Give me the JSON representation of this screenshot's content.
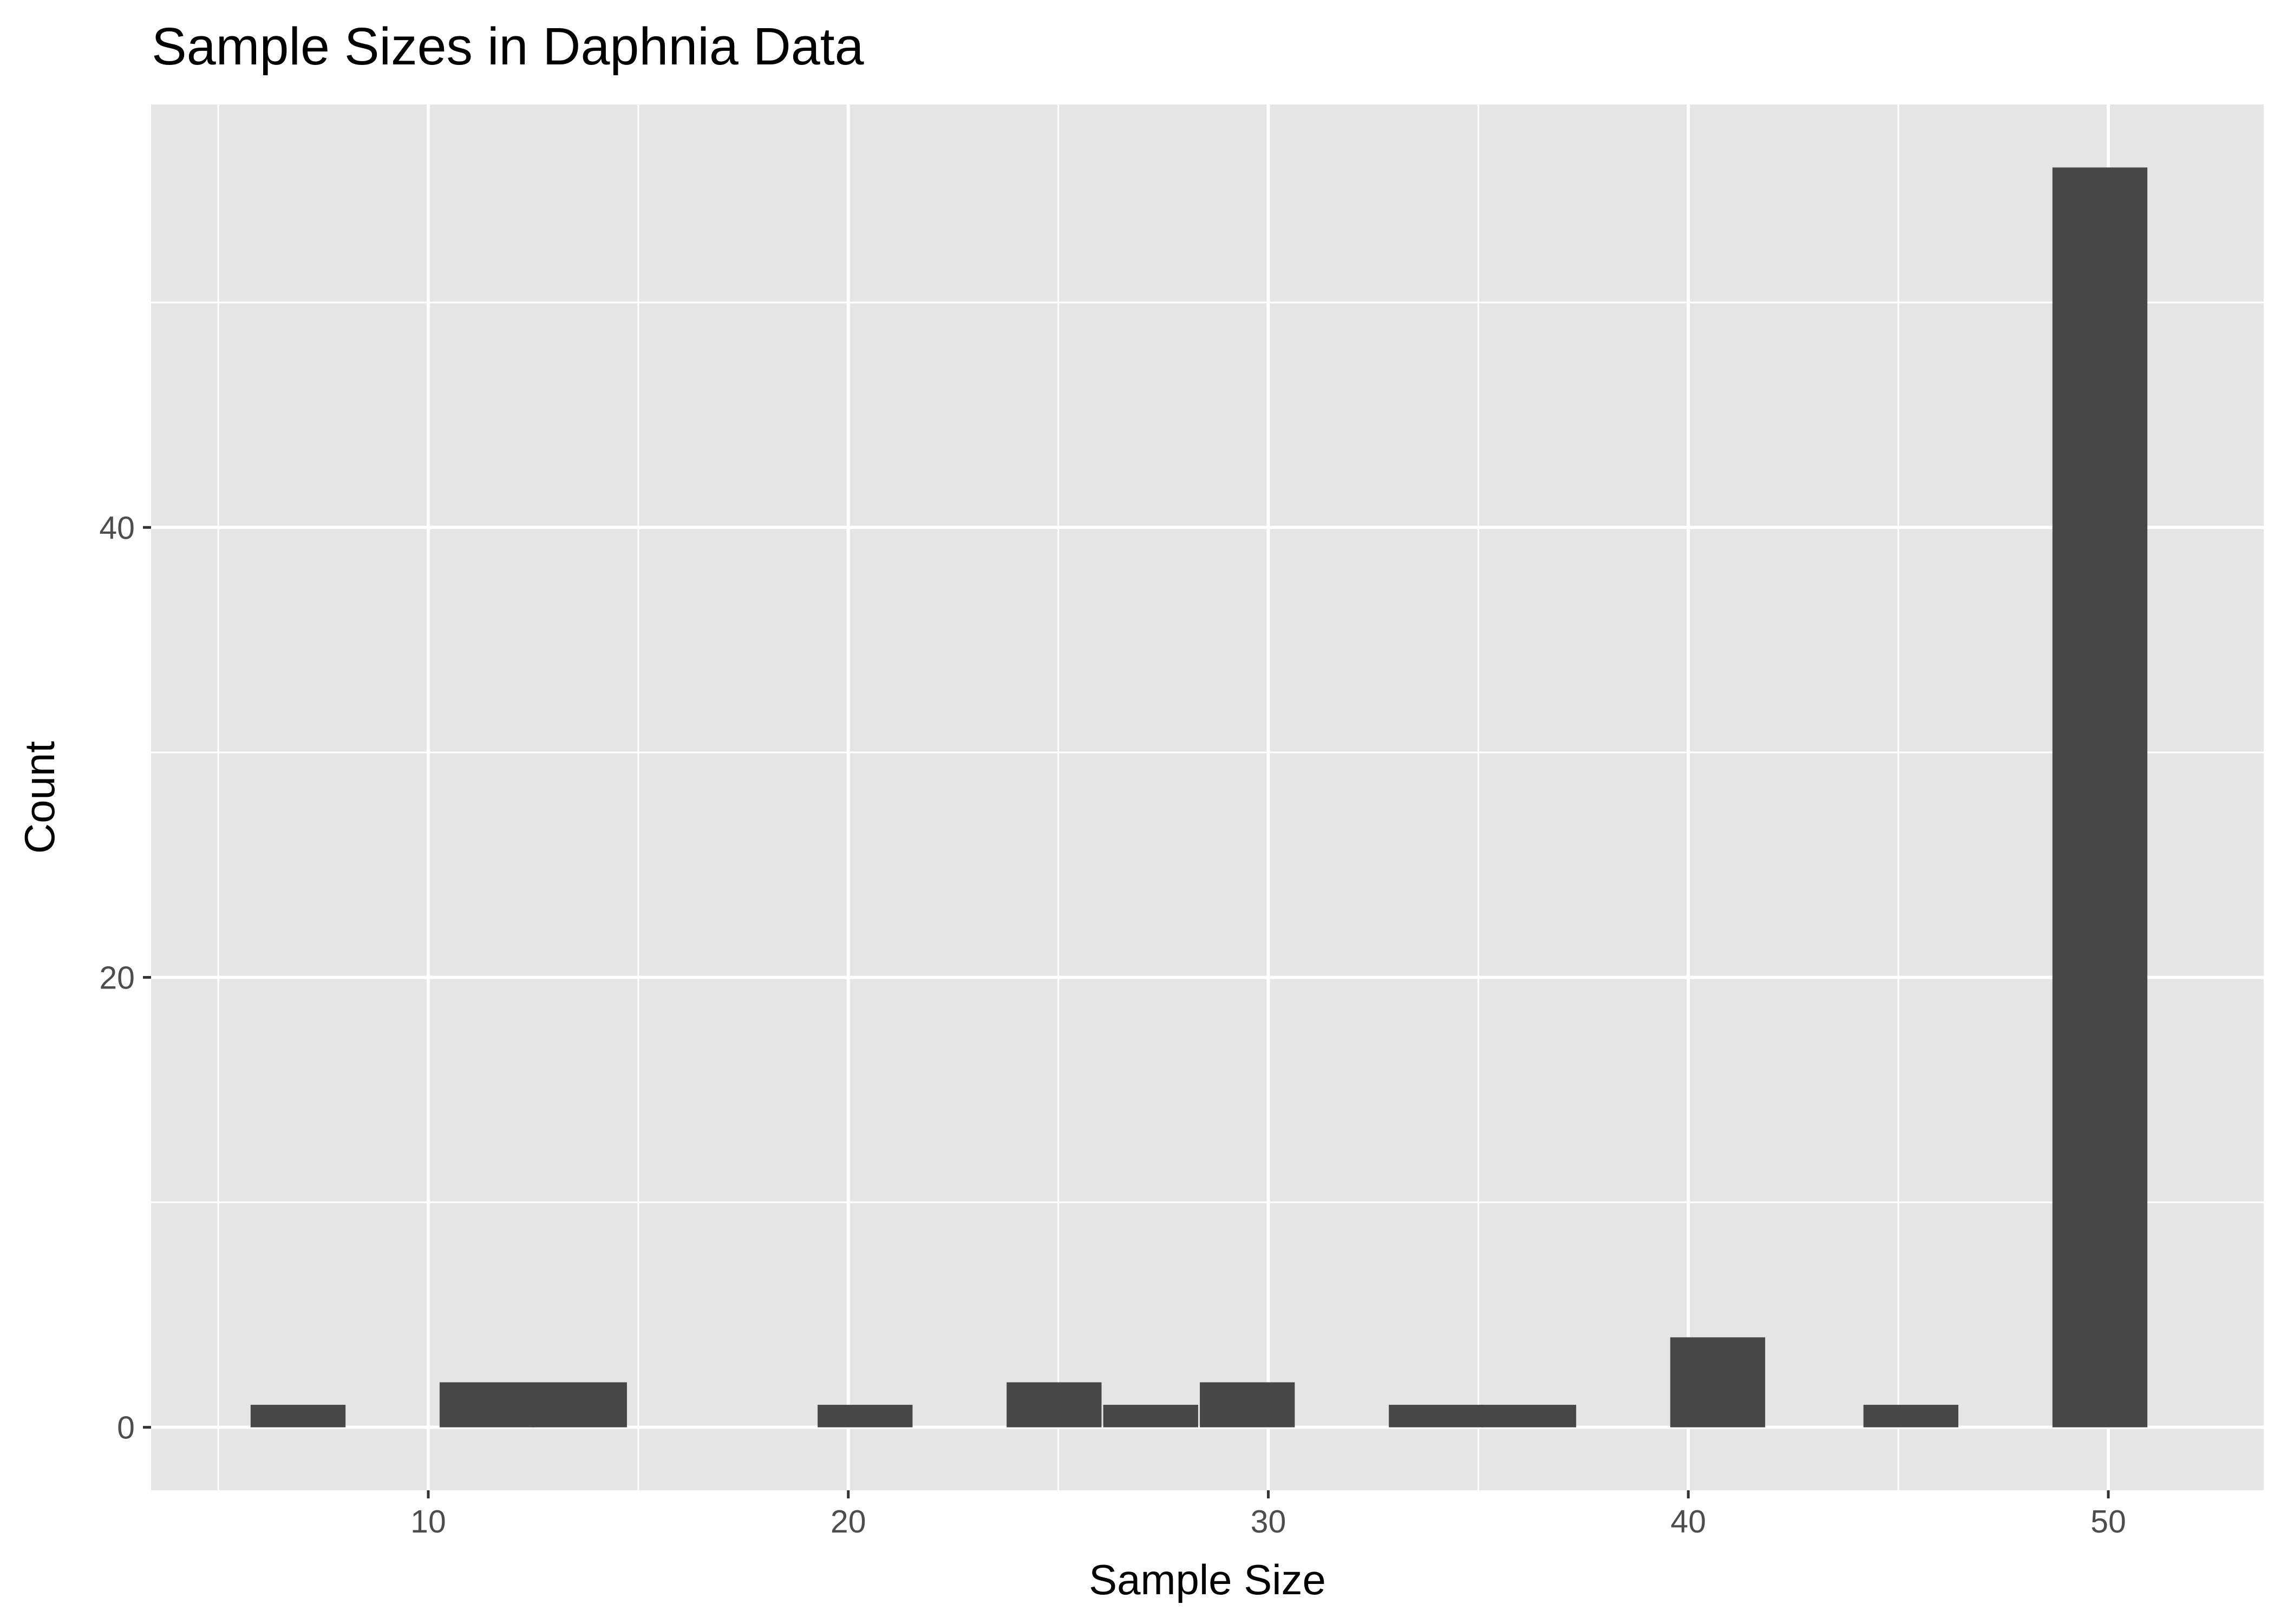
{
  "chart_data": {
    "type": "bar",
    "title": "Sample Sizes in Daphnia Data",
    "xlabel": "Sample Size",
    "ylabel": "Count",
    "xlim": [
      3.4,
      53.7
    ],
    "ylim": [
      -2.8,
      58.8
    ],
    "x_ticks": [
      10,
      20,
      30,
      40,
      50
    ],
    "y_ticks": [
      0,
      20,
      40
    ],
    "x_minor_ticks": [
      5,
      15,
      25,
      35,
      45
    ],
    "y_minor_ticks": [
      10,
      30,
      50
    ],
    "bin_width": 2.26,
    "bins": [
      {
        "x": 6.9,
        "count": 1
      },
      {
        "x": 11.4,
        "count": 2
      },
      {
        "x": 13.6,
        "count": 2
      },
      {
        "x": 20.4,
        "count": 1
      },
      {
        "x": 24.9,
        "count": 2
      },
      {
        "x": 27.2,
        "count": 1
      },
      {
        "x": 29.5,
        "count": 2
      },
      {
        "x": 34.0,
        "count": 1
      },
      {
        "x": 36.2,
        "count": 1
      },
      {
        "x": 40.7,
        "count": 4
      },
      {
        "x": 45.3,
        "count": 1
      },
      {
        "x": 49.8,
        "count": 56
      }
    ],
    "grid": true,
    "colors": {
      "bar": "#474747",
      "panel": "#e5e5e5",
      "grid": "#ffffff",
      "text": "#000000",
      "tick_label": "#4d4d4d"
    }
  }
}
